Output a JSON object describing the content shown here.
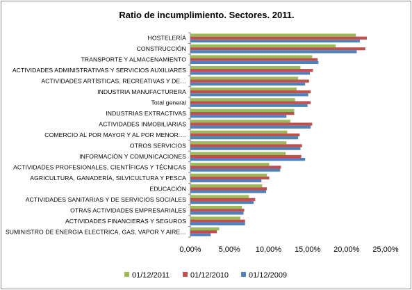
{
  "chart_data": {
    "type": "bar",
    "orientation": "horizontal",
    "title": "Ratio de incumplimiento. Sectores. 2011.",
    "xlabel": "",
    "ylabel": "",
    "xlim": [
      0,
      25
    ],
    "x_ticks": [
      "0,00%",
      "5,00%",
      "10,00%",
      "15,00%",
      "20,00%",
      "25,00%"
    ],
    "grid": false,
    "legend_position": "bottom",
    "categories": [
      "HOSTELERÍA",
      "CONSTRUCCIÓN",
      "TRANSPORTE Y ALMACENAMIENTO",
      "ACTIVIDADES ADMINISTRATIVAS Y SERVICIOS AUXILIARES",
      "ACTIVIDADES ARTÍSTICAS, RECREATIVAS Y DE…",
      "INDUSTRIA MANUFACTURERA",
      "Total general",
      "INDUSTRIAS EXTRACTIVAS",
      "ACTIVIDADES INMOBILIARIAS",
      "COMERCIO AL POR MAYOR Y AL POR MENOR:…",
      "OTROS SERVICIOS",
      "INFORMACIÓN Y COMUNICACIONES",
      "ACTIVIDADES PROFESIONALES, CIENTÍFICAS Y TÉCNICAS",
      "AGRICULTURA, GANADERÍA, SILVICULTURA Y PESCA",
      "EDUCACIÓN",
      "ACTIVIDADES SANITARIAS Y DE SERVICIOS SOCIALES",
      "OTRAS ACTIVIDADES EMPRESARIALES",
      "ACTIVIDADES FINANCIERAS Y SEGUROS",
      "SUMINISTRO DE ENERGIA ELECTRICA, GAS, VAPOR Y AIRE…"
    ],
    "series": [
      {
        "name": "01/12/2011",
        "color": "#9bbb59",
        "values": [
          21.2,
          18.6,
          15.6,
          14.1,
          13.8,
          13.6,
          13.4,
          13.3,
          12.8,
          12.4,
          12.3,
          12.2,
          10.1,
          9.8,
          9.2,
          7.5,
          6.6,
          6.4,
          3.7
        ]
      },
      {
        "name": "01/12/2010",
        "color": "#c0504d",
        "values": [
          22.6,
          22.4,
          16.3,
          15.7,
          15.2,
          15.4,
          15.4,
          13.3,
          15.6,
          14.0,
          14.3,
          14.2,
          11.6,
          10.1,
          9.8,
          8.3,
          6.9,
          7.0,
          3.4
        ]
      },
      {
        "name": "01/12/2009",
        "color": "#4f81bd",
        "values": [
          21.7,
          21.3,
          16.4,
          15.3,
          14.7,
          15.1,
          15.0,
          12.3,
          15.4,
          13.8,
          14.1,
          14.7,
          11.5,
          9.1,
          9.7,
          8.1,
          6.8,
          7.0,
          2.6
        ]
      }
    ]
  }
}
